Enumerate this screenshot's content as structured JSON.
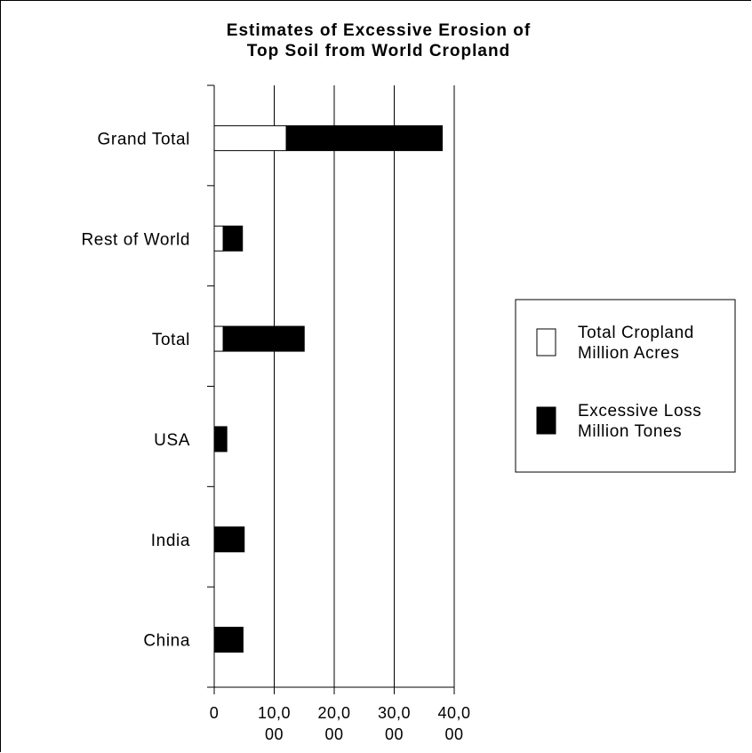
{
  "chart_data": {
    "type": "bar",
    "stacked": true,
    "orientation": "horizontal",
    "title": [
      "Estimates of Excessive Erosion of",
      "Top Soil from World Cropland"
    ],
    "categories": [
      "Grand Total",
      "Rest of World",
      "Total",
      "USA",
      "India",
      "China"
    ],
    "series": [
      {
        "name": "Total Cropland Million Acres",
        "color": "#ffffff",
        "values": [
          12000,
          1500,
          1500,
          0,
          0,
          0
        ]
      },
      {
        "name": "Excessive Loss Million Tones",
        "color": "#000000",
        "values": [
          26000,
          3200,
          13500,
          2100,
          5000,
          4800
        ]
      }
    ],
    "xlim": [
      0,
      40000
    ],
    "x_ticks": [
      {
        "value": 0,
        "label": [
          "0"
        ]
      },
      {
        "value": 10000,
        "label": [
          "10,0",
          "00"
        ]
      },
      {
        "value": 20000,
        "label": [
          "20,0",
          "00"
        ]
      },
      {
        "value": 30000,
        "label": [
          "30,0",
          "00"
        ]
      },
      {
        "value": 40000,
        "label": [
          "40,0",
          "00"
        ]
      }
    ],
    "grid": "vertical",
    "legend_position": "right"
  }
}
